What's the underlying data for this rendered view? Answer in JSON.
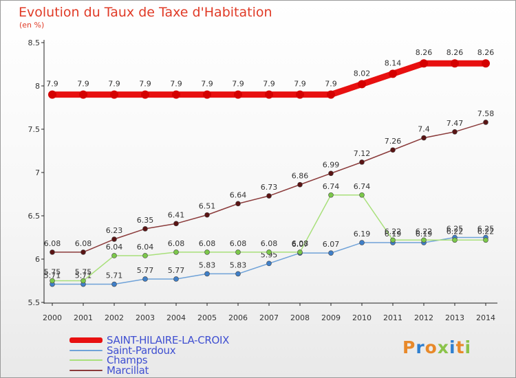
{
  "title": "Evolution du Taux de Taxe d'Habitation",
  "unit": "(en %)",
  "logo": {
    "text": "Proxiti",
    "colors": [
      "#e8892a",
      "#2f7fd0",
      "#e8892a",
      "#8bc34a",
      "#2f7fd0",
      "#e8892a",
      "#8bc34a"
    ]
  },
  "chart_data": {
    "type": "line",
    "x": [
      "2000",
      "2001",
      "2002",
      "2003",
      "2004",
      "2005",
      "2006",
      "2007",
      "2008",
      "2009",
      "2010",
      "2011",
      "2012",
      "2013",
      "2014"
    ],
    "ylim": [
      5.5,
      8.5
    ],
    "yticks": [
      "5.5",
      "6",
      "6.5",
      "7",
      "7.5",
      "8",
      "8.5"
    ],
    "grid": false,
    "legend": "bottom-left",
    "series": [
      {
        "name": "SAINT-HILAIRE-LA-CROIX",
        "color": "#e81010",
        "marker": "#d40000",
        "values": [
          7.9,
          7.9,
          7.9,
          7.9,
          7.9,
          7.9,
          7.9,
          7.9,
          7.9,
          7.9,
          8.02,
          8.14,
          8.26,
          8.26,
          8.26
        ],
        "labels": [
          "7.9",
          "7.9",
          "7.9",
          "7.9",
          "7.9",
          "7.9",
          "7.9",
          "7.9",
          "7.9",
          "7.9",
          "8.02",
          "8.14",
          "8.26",
          "8.26",
          "8.26"
        ]
      },
      {
        "name": "Saint-Pardoux",
        "color": "#6fa2d8",
        "marker": "#3f7fc8",
        "values": [
          5.71,
          5.71,
          5.71,
          5.77,
          5.77,
          5.83,
          5.83,
          5.95,
          6.07,
          6.07,
          6.19,
          6.19,
          6.19,
          6.25,
          6.25
        ],
        "labels": [
          "5.71",
          "5.71",
          "5.71",
          "5.77",
          "5.77",
          "5.83",
          "5.83",
          "5.95",
          "6.07",
          "6.07",
          "6.19",
          "6.19",
          "6.19",
          "6.25",
          "6.25"
        ]
      },
      {
        "name": "Champs",
        "color": "#a8e07a",
        "marker": "#7cc84a",
        "values": [
          5.75,
          5.75,
          6.04,
          6.04,
          6.08,
          6.08,
          6.08,
          6.08,
          6.08,
          6.74,
          6.74,
          6.22,
          6.22,
          6.22,
          6.22
        ],
        "labels": [
          "5.75",
          "5.75",
          "6.04",
          "6.04",
          "6.08",
          "6.08",
          "6.08",
          "6.08",
          "6.08",
          "6.74",
          "6.74",
          "6.22",
          "6.22",
          "6.22",
          "6.22"
        ]
      },
      {
        "name": "Marcillat",
        "color": "#8a3a3a",
        "marker": "#5a1414",
        "values": [
          6.08,
          6.08,
          6.23,
          6.35,
          6.41,
          6.51,
          6.64,
          6.73,
          6.86,
          6.99,
          7.12,
          7.26,
          7.4,
          7.47,
          7.58
        ],
        "labels": [
          "6.08",
          "6.08",
          "6.23",
          "6.35",
          "6.41",
          "6.51",
          "6.64",
          "6.73",
          "6.86",
          "6.99",
          "7.12",
          "7.26",
          "7.4",
          "7.47",
          "7.58"
        ]
      }
    ]
  }
}
